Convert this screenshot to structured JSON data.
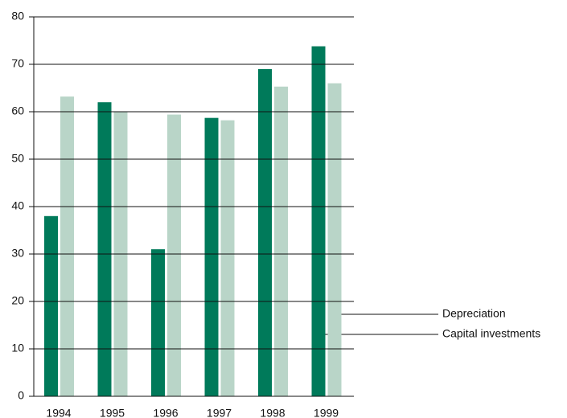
{
  "chart_data": {
    "type": "bar",
    "categories": [
      "1994",
      "1995",
      "1996",
      "1997",
      "1998",
      "1999"
    ],
    "series": [
      {
        "name": "Capital investments",
        "color": "#007a5a",
        "values": [
          38,
          62,
          31,
          58.7,
          69,
          73.8
        ]
      },
      {
        "name": "Depreciation",
        "color": "#b9d5c8",
        "values": [
          63.2,
          60,
          59.4,
          58.2,
          65.3,
          66
        ]
      }
    ],
    "ylim": [
      0,
      80
    ],
    "yticks": [
      0,
      10,
      20,
      30,
      40,
      50,
      60,
      70,
      80
    ],
    "grid": true
  }
}
